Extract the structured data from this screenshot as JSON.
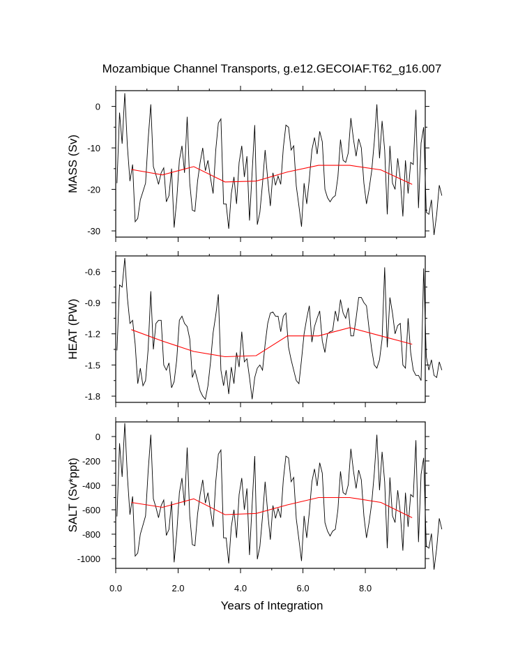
{
  "title": "Mozambique Channel Transports, g.e12.GECOIAF.T62_g16.007",
  "xlabel": "Years of Integration",
  "x_tick_labels": [
    "0.0",
    "2.0",
    "4.0",
    "6.0",
    "8.0"
  ],
  "colors": {
    "monthly": "#000000",
    "annual": "#ff0000"
  },
  "chart_data": [
    {
      "type": "line",
      "ylabel": "MASS (Sv)",
      "xlim": [
        0,
        9.92
      ],
      "ylim": [
        -31.5,
        3.8
      ],
      "yticks": [
        0,
        -10,
        -20,
        -30
      ],
      "y_tick_labels": [
        "0",
        "-10",
        "-20",
        "-30"
      ],
      "series": [
        {
          "name": "monthly",
          "x_start": 0.04,
          "x_step": 0.0833,
          "values": [
            -18.5,
            -1.5,
            -9,
            3.2,
            -9.5,
            -18,
            -14,
            -27.8,
            -27,
            -22.5,
            -20.5,
            -18.5,
            -8,
            0.5,
            -14.5,
            -16.5,
            -18.8,
            -16,
            -14.8,
            -23,
            -21.5,
            -15,
            -29.2,
            -22.5,
            -13,
            -9.5,
            -16,
            -2.5,
            -18.5,
            -25,
            -25.3,
            -18,
            -13.5,
            -10,
            -15.5,
            -13,
            -17.3,
            -21,
            -10.5,
            -4,
            -3,
            -23.5,
            -23.5,
            -29.5,
            -21,
            -17,
            -23.5,
            -13.5,
            -9.5,
            -17,
            -12,
            -27.5,
            -15.8,
            -4.5,
            -28.5,
            -25.5,
            -18.5,
            -10.5,
            -17.5,
            -24,
            -16,
            -19,
            -16.8,
            -18.8,
            -10,
            -4.5,
            -5,
            -10.5,
            -9.5,
            -19.2,
            -24,
            -29,
            -18.5,
            -23.5,
            -17.5,
            -10.5,
            -7.5,
            -11.5,
            -6,
            -8.5,
            -20,
            -22,
            -23,
            -22,
            -21.5,
            -17,
            -8,
            -13,
            -13.5,
            -11.2,
            -2.8,
            -8,
            -12,
            -7.8,
            -10,
            -18.5,
            -23.5,
            -20,
            -15.5,
            -8.5,
            0.5,
            -12.5,
            -3.5,
            -10.5,
            -26,
            -9.5,
            -18.5,
            -20,
            -12.5,
            -17.5,
            -26.5,
            -13,
            -21,
            -13.5,
            -14,
            -0.8,
            -24.5,
            -8.8,
            -5,
            -25.5,
            -26,
            -22.5,
            -31,
            -26,
            -19,
            -21.5
          ]
        },
        {
          "name": "annual",
          "x": [
            0.5,
            1.5,
            2.5,
            3.5,
            4.5,
            5.5,
            6.5,
            7.5,
            8.5,
            9.5
          ],
          "values": [
            -15.2,
            -16.5,
            -14.5,
            -18.2,
            -18,
            -15.8,
            -14.2,
            -14.2,
            -15.3,
            -18.8
          ]
        }
      ]
    },
    {
      "type": "line",
      "ylabel": "HEAT (PW)",
      "xlim": [
        0,
        9.92
      ],
      "ylim": [
        -1.86,
        -0.45
      ],
      "yticks": [
        -0.6,
        -0.9,
        -1.2,
        -1.5,
        -1.8
      ],
      "y_tick_labels": [
        "-0.6",
        "-0.9",
        "-1.2",
        "-1.5",
        "-1.8"
      ],
      "series": [
        {
          "name": "monthly",
          "x_start": 0.04,
          "x_step": 0.0833,
          "values": [
            -1.36,
            -0.73,
            -0.75,
            -0.47,
            -0.85,
            -1.1,
            -1.07,
            -1.3,
            -1.68,
            -1.53,
            -1.7,
            -1.65,
            -1.35,
            -0.79,
            -1.35,
            -1.1,
            -1.07,
            -1.07,
            -1.5,
            -1.55,
            -1.48,
            -1.72,
            -1.66,
            -1.45,
            -1.07,
            -1.03,
            -1.1,
            -1.13,
            -1.25,
            -1.62,
            -1.55,
            -1.65,
            -1.75,
            -1.8,
            -1.83,
            -1.7,
            -1.47,
            -1.19,
            -1.02,
            -0.82,
            -1.55,
            -1.7,
            -1.55,
            -1.78,
            -1.52,
            -1.68,
            -1.38,
            -1.52,
            -1.18,
            -1.47,
            -1.44,
            -1.62,
            -1.83,
            -1.62,
            -1.53,
            -1.5,
            -1.55,
            -1.3,
            -1.1,
            -1.0,
            -0.99,
            -1.03,
            -1.03,
            -1.18,
            -1.03,
            -1.0,
            -1.33,
            -1.45,
            -1.55,
            -1.65,
            -1.68,
            -1.45,
            -1.2,
            -1.05,
            -0.93,
            -1.28,
            -1.13,
            -1.05,
            -0.98,
            -1.27,
            -1.38,
            -1.2,
            -1.18,
            -1.17,
            -0.98,
            -1.08,
            -0.87,
            -1.0,
            -1.05,
            -0.95,
            -1.22,
            -1.22,
            -1.05,
            -0.85,
            -0.85,
            -0.9,
            -0.93,
            -1.15,
            -1.35,
            -1.5,
            -1.53,
            -1.45,
            -1.25,
            -0.56,
            -1.33,
            -0.85,
            -1.0,
            -1.2,
            -1.12,
            -1.1,
            -1.5,
            -1.53,
            -1.05,
            -1.38,
            -1.55,
            -1.6,
            -1.6,
            -1.65,
            -0.57,
            -1.42,
            -1.55,
            -1.45,
            -1.6,
            -1.62,
            -1.47,
            -1.55
          ]
        },
        {
          "name": "annual",
          "x": [
            0.5,
            1.5,
            2.5,
            3.5,
            4.5,
            5.5,
            6.5,
            7.5,
            8.5,
            9.5
          ],
          "values": [
            -1.16,
            -1.27,
            -1.37,
            -1.42,
            -1.41,
            -1.22,
            -1.22,
            -1.14,
            -1.22,
            -1.3
          ]
        }
      ]
    },
    {
      "type": "line",
      "ylabel": "SALT (Sv*ppt)",
      "xlim": [
        0,
        9.92
      ],
      "ylim": [
        -1080,
        120
      ],
      "yticks": [
        0,
        -200,
        -400,
        -600,
        -800,
        -1000
      ],
      "y_tick_labels": [
        "0",
        "-200",
        "-400",
        "-600",
        "-800",
        "-1000"
      ],
      "series": [
        {
          "name": "monthly",
          "x_start": 0.04,
          "x_step": 0.0833,
          "values": [
            -655,
            -55,
            -330,
            110,
            -320,
            -640,
            -490,
            -980,
            -955,
            -800,
            -725,
            -650,
            -285,
            15,
            -510,
            -580,
            -665,
            -565,
            -520,
            -810,
            -760,
            -530,
            -1030,
            -795,
            -460,
            -340,
            -565,
            -90,
            -650,
            -885,
            -895,
            -635,
            -475,
            -355,
            -545,
            -460,
            -610,
            -740,
            -370,
            -145,
            -110,
            -830,
            -830,
            -1040,
            -740,
            -600,
            -830,
            -475,
            -340,
            -600,
            -425,
            -970,
            -555,
            -160,
            -1005,
            -900,
            -655,
            -370,
            -620,
            -845,
            -565,
            -670,
            -590,
            -665,
            -355,
            -160,
            -175,
            -370,
            -335,
            -675,
            -845,
            -1020,
            -650,
            -830,
            -620,
            -370,
            -265,
            -405,
            -215,
            -300,
            -705,
            -775,
            -815,
            -775,
            -760,
            -600,
            -285,
            -460,
            -475,
            -395,
            -100,
            -285,
            -425,
            -275,
            -355,
            -650,
            -830,
            -705,
            -545,
            -300,
            15,
            -440,
            -125,
            -370,
            -915,
            -335,
            -650,
            -705,
            -440,
            -620,
            -935,
            -460,
            -740,
            -475,
            -495,
            -30,
            -865,
            -310,
            -175,
            -900,
            -915,
            -795,
            -1090,
            -915,
            -670,
            -760
          ]
        },
        {
          "name": "annual",
          "x": [
            0.5,
            1.5,
            2.5,
            3.5,
            4.5,
            5.5,
            6.5,
            7.5,
            8.5,
            9.5
          ],
          "values": [
            -540,
            -580,
            -510,
            -640,
            -630,
            -560,
            -500,
            -500,
            -540,
            -665
          ]
        }
      ]
    }
  ]
}
